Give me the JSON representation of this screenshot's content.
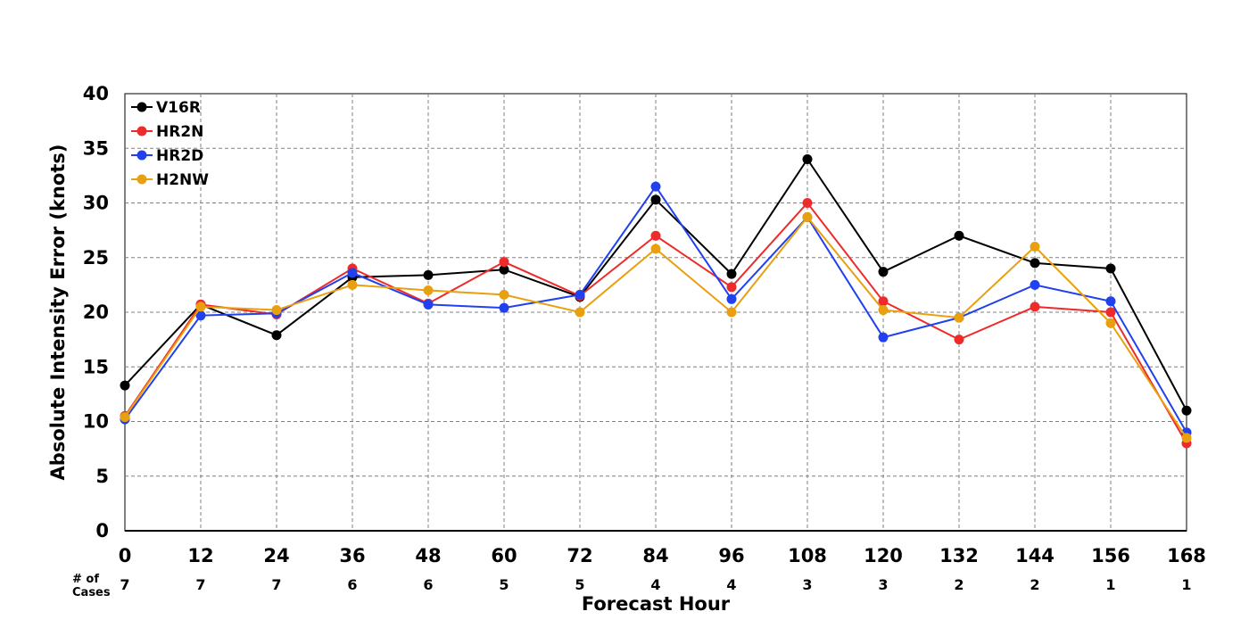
{
  "chart_data": {
    "type": "line",
    "title": "",
    "xlabel": "Forecast Hour",
    "ylabel": "Absolute Intensity Error (knots)",
    "x": [
      0,
      12,
      24,
      36,
      48,
      60,
      72,
      84,
      96,
      108,
      120,
      132,
      144,
      156,
      168
    ],
    "xlim": [
      0,
      168
    ],
    "ylim": [
      0,
      40
    ],
    "yticks": [
      0,
      5,
      10,
      15,
      20,
      25,
      30,
      35,
      40
    ],
    "grid": true,
    "legend_position": "top-left",
    "cases_label": "# of\nCases",
    "cases": [
      7,
      7,
      7,
      6,
      6,
      5,
      5,
      4,
      4,
      3,
      3,
      2,
      2,
      1,
      1
    ],
    "series": [
      {
        "name": "V16R",
        "color": "#000000",
        "values": [
          13.3,
          20.7,
          17.9,
          23.2,
          23.4,
          23.9,
          21.4,
          30.3,
          23.5,
          34.0,
          23.7,
          27.0,
          24.5,
          24.0,
          11.0
        ]
      },
      {
        "name": "HR2N",
        "color": "#ee2a2a",
        "values": [
          10.5,
          20.7,
          19.8,
          24.0,
          20.8,
          24.6,
          21.5,
          27.0,
          22.3,
          30.0,
          21.0,
          17.5,
          20.5,
          20.0,
          8.0
        ]
      },
      {
        "name": "HR2D",
        "color": "#2140ee",
        "values": [
          10.2,
          19.7,
          19.9,
          23.6,
          20.7,
          20.4,
          21.6,
          31.5,
          21.2,
          28.7,
          17.7,
          19.5,
          22.5,
          21.0,
          9.0
        ]
      },
      {
        "name": "H2NW",
        "color": "#e8a010",
        "values": [
          10.4,
          20.5,
          20.2,
          22.5,
          22.0,
          21.6,
          20.0,
          25.8,
          20.0,
          28.7,
          20.2,
          19.5,
          26.0,
          19.0,
          8.5
        ]
      }
    ]
  }
}
